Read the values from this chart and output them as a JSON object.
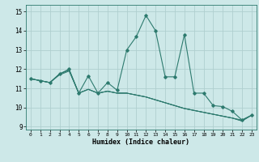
{
  "xlabel": "Humidex (Indice chaleur)",
  "bg_color": "#cde8e8",
  "grid_color": "#b0cfcf",
  "line_color": "#2d7a6e",
  "x_ticks": [
    0,
    1,
    2,
    3,
    4,
    5,
    6,
    7,
    8,
    9,
    10,
    11,
    12,
    13,
    14,
    15,
    16,
    17,
    18,
    19,
    20,
    21,
    22,
    23
  ],
  "y_ticks": [
    9,
    10,
    11,
    12,
    13,
    14,
    15
  ],
  "xlim": [
    -0.5,
    23.5
  ],
  "ylim": [
    8.85,
    15.35
  ],
  "series_thin": [
    [
      11.5,
      11.4,
      11.3,
      11.7,
      11.9,
      10.75,
      10.95,
      10.75,
      10.85,
      10.75,
      10.75,
      10.65,
      10.55,
      10.4,
      10.25,
      10.1,
      9.95,
      9.85,
      9.75,
      9.65,
      9.55,
      9.45,
      9.35,
      9.6
    ],
    [
      11.5,
      11.4,
      11.3,
      11.75,
      11.95,
      10.75,
      10.95,
      10.75,
      10.85,
      10.75,
      10.75,
      10.65,
      10.55,
      10.4,
      10.25,
      10.1,
      9.95,
      9.85,
      9.75,
      9.65,
      9.55,
      9.45,
      9.3,
      9.6
    ],
    [
      11.5,
      11.4,
      11.3,
      11.75,
      11.95,
      10.75,
      10.95,
      10.75,
      10.85,
      10.75,
      10.75,
      10.65,
      10.55,
      10.4,
      10.25,
      10.1,
      9.95,
      9.85,
      9.75,
      9.65,
      9.55,
      9.45,
      9.3,
      9.6
    ]
  ],
  "series_spike": [
    11.5,
    11.4,
    11.3,
    11.75,
    12.0,
    10.75,
    11.65,
    10.75,
    11.3,
    10.9,
    13.0,
    13.7,
    14.8,
    14.0,
    11.6,
    11.6,
    13.8,
    10.75,
    10.75,
    10.1,
    10.05,
    9.8,
    9.35,
    9.6
  ]
}
